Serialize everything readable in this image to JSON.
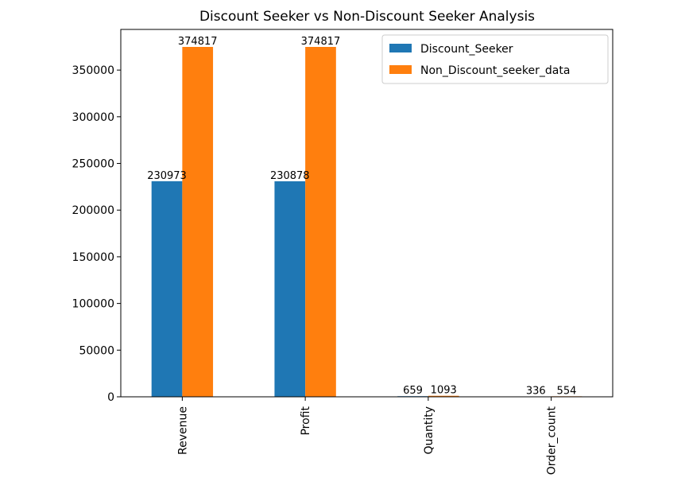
{
  "chart_data": {
    "type": "bar",
    "title": "Discount Seeker vs Non-Discount Seeker Analysis",
    "xlabel": "",
    "ylabel": "",
    "categories": [
      "Revenue",
      "Profit",
      "Quantity",
      "Order_count"
    ],
    "series": [
      {
        "name": "Discount_Seeker",
        "color": "#1f77b4",
        "values": [
          230973,
          230878,
          659,
          336
        ]
      },
      {
        "name": "Non_Discount_seeker_data",
        "color": "#ff7f0e",
        "values": [
          374817,
          374817,
          1093,
          554
        ]
      }
    ],
    "ylim": [
      0,
      393557
    ],
    "yticks": [
      0,
      50000,
      100000,
      150000,
      200000,
      250000,
      300000,
      350000
    ],
    "ytick_labels": [
      "0",
      "50000",
      "100000",
      "150000",
      "200000",
      "250000",
      "300000",
      "350000"
    ],
    "data_labels": [
      [
        "230973",
        "230878",
        "659",
        "336"
      ],
      [
        "374817",
        "374817",
        "1093",
        "554"
      ]
    ],
    "legend_position": "upper right",
    "grid": false
  }
}
